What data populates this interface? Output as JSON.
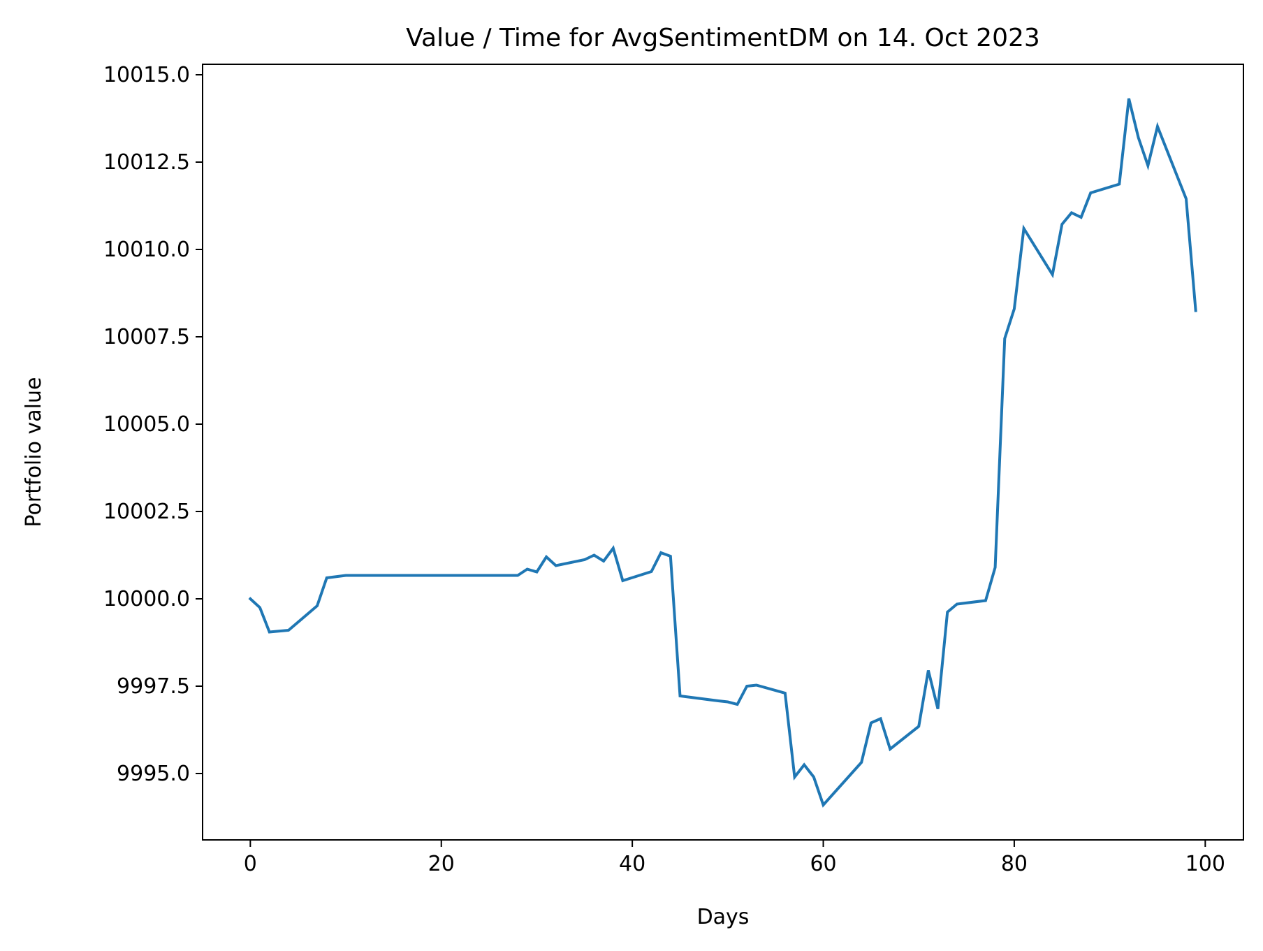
{
  "chart_data": {
    "type": "line",
    "title": "Value / Time for AvgSentimentDM on 14. Oct 2023",
    "xlabel": "Days",
    "ylabel": "Portfolio value",
    "xlim": [
      -5,
      104
    ],
    "ylim": [
      9993.1,
      10015.3
    ],
    "xticks": [
      0,
      20,
      40,
      60,
      80,
      100
    ],
    "yticks": [
      9995.0,
      9997.5,
      10000.0,
      10002.5,
      10005.0,
      10007.5,
      10010.0,
      10012.5,
      10015.0
    ],
    "xtick_labels": [
      "0",
      "20",
      "40",
      "60",
      "80",
      "100"
    ],
    "ytick_labels": [
      "9995.0",
      "9997.5",
      "10000.0",
      "10002.5",
      "10005.0",
      "10007.5",
      "10010.0",
      "10012.5",
      "10015.0"
    ],
    "grid": false,
    "colors": {
      "line": "#1f77b4"
    },
    "series": [
      {
        "x": [
          0,
          1,
          2,
          4,
          7,
          8,
          10,
          28,
          29,
          30,
          31,
          32,
          35,
          36,
          37,
          38,
          39,
          42,
          43,
          44,
          45,
          49,
          50,
          51,
          52,
          53,
          56,
          57,
          58,
          59,
          60,
          64,
          65,
          66,
          67,
          70,
          71,
          72,
          73,
          74,
          77,
          78,
          79,
          80,
          81,
          84,
          85,
          86,
          87,
          88,
          91,
          92,
          93,
          94,
          95,
          98,
          99
        ],
        "y": [
          10000.0,
          9999.75,
          9999.05,
          9999.1,
          9999.8,
          10000.6,
          10000.67,
          10000.67,
          10000.85,
          10000.77,
          10001.2,
          10000.95,
          10001.12,
          10001.25,
          10001.08,
          10001.45,
          10000.52,
          10000.78,
          10001.32,
          10001.22,
          9997.22,
          9997.08,
          9997.05,
          9996.98,
          9997.5,
          9997.53,
          9997.3,
          9994.9,
          9995.25,
          9994.9,
          9994.1,
          9995.32,
          9996.45,
          9996.57,
          9995.7,
          9996.35,
          9997.95,
          9996.85,
          9999.62,
          9999.85,
          9999.95,
          10000.9,
          10007.45,
          10008.3,
          10010.6,
          10009.28,
          10010.72,
          10011.05,
          10010.92,
          10011.62,
          10011.87,
          10014.32,
          10013.2,
          10012.4,
          10013.52,
          10011.45,
          10008.25
        ]
      }
    ]
  }
}
